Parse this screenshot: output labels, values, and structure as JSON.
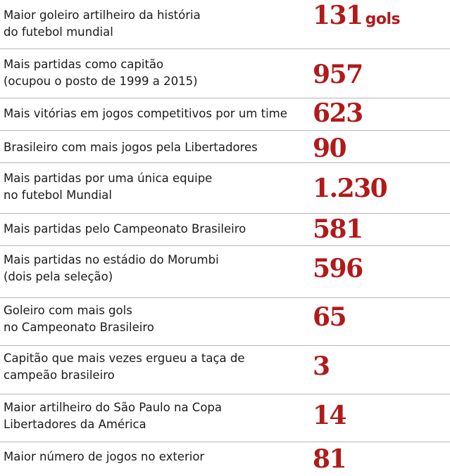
{
  "records": [
    {
      "label_lines": [
        "Maior goleiro artilheiro da história",
        "do futebol mundial"
      ],
      "value": "131",
      "unit": "gols"
    },
    {
      "label_lines": [
        "Mais partidas como capitão",
        "(ocupou o posto de 1999 a 2015)"
      ],
      "value": "957"
    },
    {
      "label_lines": [
        "Mais vitórias em jogos competitivos por um time"
      ],
      "value": "623"
    },
    {
      "label_lines": [
        "Brasileiro com mais jogos pela Libertadores"
      ],
      "value": "90"
    },
    {
      "label_lines": [
        "Mais partidas por uma única equipe",
        "no futebol Mundial"
      ],
      "value": "1.230"
    },
    {
      "label_lines": [
        "Mais partidas pelo Campeonato Brasileiro"
      ],
      "value": "581"
    },
    {
      "label_lines": [
        "Mais partidas no estádio do Morumbi",
        "(dois pela seleção)"
      ],
      "value": "596"
    },
    {
      "label_lines": [
        "Goleiro com mais gols",
        "no Campeonato Brasileiro"
      ],
      "value": "65"
    },
    {
      "label_lines": [
        "Capitão que mais vezes ergueu a taça de",
        "campeão brasileiro"
      ],
      "value": "3"
    },
    {
      "label_lines": [
        "Maior artilheiro do São Paulo na Copa",
        "Libertadores da América"
      ],
      "value": "14"
    },
    {
      "label_lines": [
        "Maior número de jogos no exterior"
      ],
      "value": "81"
    }
  ],
  "colors": {
    "value": "#b01a1a",
    "label": "#1a1a1a",
    "divider": "#b5b5b5"
  }
}
